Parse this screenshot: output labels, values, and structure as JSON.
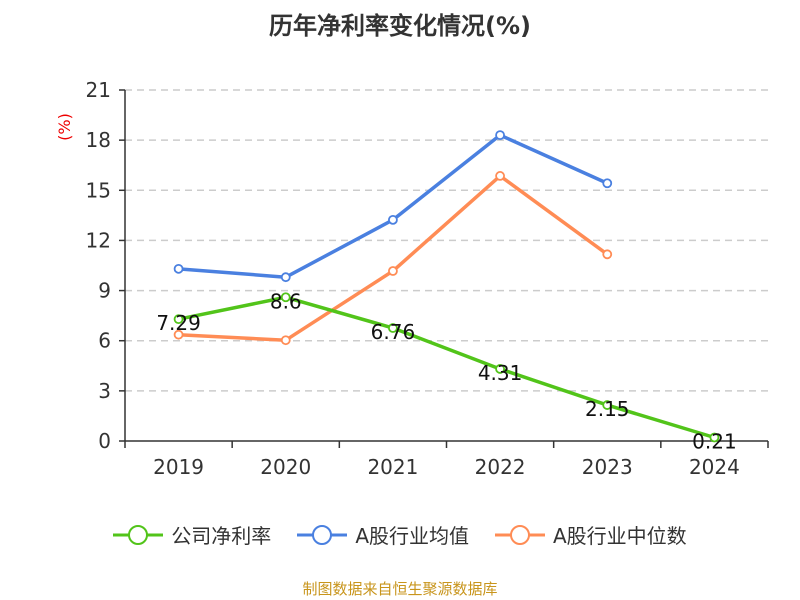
{
  "chart_data": {
    "type": "line",
    "title": "历年净利率变化情况(%)",
    "ylabel": "(%)",
    "categories": [
      "2019",
      "2020",
      "2021",
      "2022",
      "2023",
      "2024"
    ],
    "ylim": [
      0,
      21
    ],
    "yticks": [
      0,
      3,
      6,
      9,
      12,
      15,
      18,
      21
    ],
    "grid": true,
    "legend_position": "bottom",
    "series": [
      {
        "name": "公司净利率",
        "color": "#52c41a",
        "values": [
          7.29,
          8.6,
          6.76,
          4.31,
          2.15,
          0.21
        ],
        "labels": [
          "7.29",
          "8.6",
          "6.76",
          "4.31",
          "2.15",
          "0.21"
        ]
      },
      {
        "name": "A股行业均值",
        "color": "#4a80e0",
        "values": [
          10.3,
          9.8,
          13.23,
          18.3,
          15.42,
          null
        ]
      },
      {
        "name": "A股行业中位数",
        "color": "#ff8c55",
        "values": [
          6.36,
          6.03,
          10.17,
          15.86,
          11.17,
          null
        ]
      }
    ]
  },
  "source": "制图数据来自恒生聚源数据库"
}
